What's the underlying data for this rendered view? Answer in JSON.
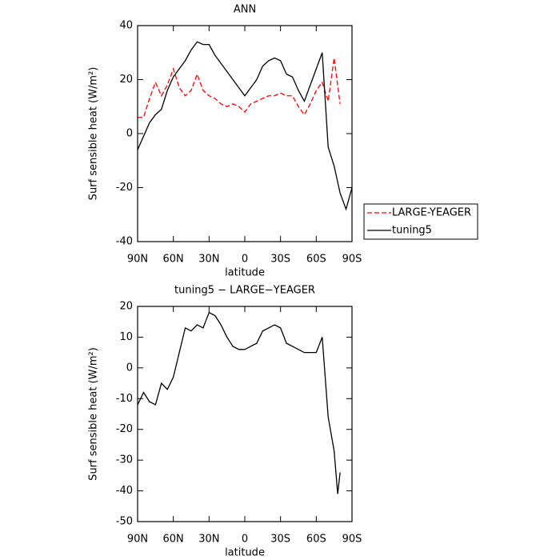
{
  "chart_data": [
    {
      "type": "line",
      "title": "ANN",
      "x_label": "latitude",
      "y_label": "Surf sensible heat (W/m²)",
      "x": [
        90,
        85,
        80,
        75,
        70,
        65,
        60,
        55,
        50,
        45,
        40,
        35,
        30,
        25,
        20,
        15,
        10,
        5,
        0,
        -5,
        -10,
        -15,
        -20,
        -25,
        -30,
        -35,
        -40,
        -45,
        -50,
        -55,
        -60,
        -65,
        -70,
        -75,
        -80,
        -85,
        -90
      ],
      "series": [
        {
          "name": "LARGE-YEAGER",
          "color": "#ff0000",
          "dash": true,
          "values": [
            6,
            6,
            13,
            19,
            14,
            18,
            24,
            17,
            14,
            16,
            22,
            16,
            14,
            13,
            11,
            10,
            11,
            10,
            8,
            11,
            12,
            13,
            14,
            14,
            15,
            14,
            14,
            10,
            7,
            11,
            16,
            19,
            12,
            28,
            11,
            null,
            null
          ]
        },
        {
          "name": "tuning5",
          "color": "#000000",
          "dash": false,
          "values": [
            -6,
            -1,
            4,
            7,
            9,
            16,
            21,
            24,
            27,
            31,
            34,
            33,
            33,
            29,
            26,
            23,
            20,
            17,
            14,
            17,
            20,
            25,
            27,
            28,
            27,
            22,
            21,
            16,
            12,
            18,
            24,
            30,
            -5,
            -12,
            -22,
            -28,
            -20
          ]
        }
      ],
      "xlim": [
        90,
        -90
      ],
      "xticks": [
        {
          "value": 90,
          "label": "90N"
        },
        {
          "value": 60,
          "label": "60N"
        },
        {
          "value": 30,
          "label": "30N"
        },
        0,
        {
          "value": -30,
          "label": "30S"
        },
        {
          "value": -60,
          "label": "60S"
        },
        {
          "value": -90,
          "label": "90S"
        }
      ],
      "ylim": [
        -40,
        40
      ],
      "yticks": [
        -40,
        -20,
        0,
        20,
        40
      ],
      "legend": "right"
    },
    {
      "type": "line",
      "title": "tuning5 − LARGE−YEAGER",
      "x_label": "latitude",
      "y_label": "Surf sensible heat (W/m²)",
      "x": [
        90,
        85,
        80,
        75,
        70,
        65,
        60,
        55,
        50,
        45,
        40,
        35,
        30,
        25,
        20,
        15,
        10,
        5,
        0,
        -5,
        -10,
        -15,
        -20,
        -25,
        -30,
        -35,
        -40,
        -45,
        -50,
        -55,
        -60,
        -65,
        -70,
        -75,
        -78,
        -80
      ],
      "series": [
        {
          "color": "#000000",
          "dash": false,
          "values": [
            -12,
            -8,
            -11,
            -12,
            -5,
            -7,
            -3,
            5,
            13,
            12,
            14,
            13,
            18,
            17,
            14,
            10,
            7,
            6,
            6,
            7,
            8,
            12,
            13,
            14,
            13,
            8,
            7,
            6,
            5,
            5,
            5,
            10,
            -16,
            -27,
            -41,
            -34
          ]
        }
      ],
      "xlim": [
        90,
        -90
      ],
      "xticks": [
        {
          "value": 90,
          "label": "90N"
        },
        {
          "value": 60,
          "label": "60N"
        },
        {
          "value": 30,
          "label": "30N"
        },
        0,
        {
          "value": -30,
          "label": "30S"
        },
        {
          "value": -60,
          "label": "60S"
        },
        {
          "value": -90,
          "label": "90S"
        }
      ],
      "ylim": [
        -50,
        20
      ],
      "yticks": [
        -50,
        -40,
        -30,
        -20,
        -10,
        0,
        10,
        20
      ]
    }
  ]
}
